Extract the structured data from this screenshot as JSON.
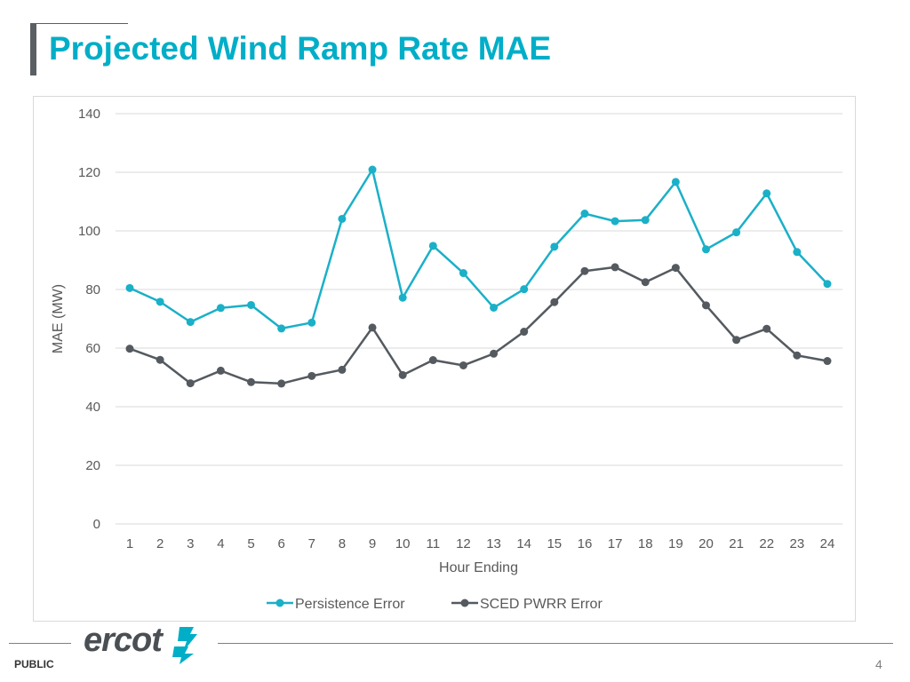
{
  "slide": {
    "title": "Projected Wind Ramp Rate MAE",
    "public_label": "PUBLIC",
    "page_number": "4",
    "logo_text": "ercot"
  },
  "colors": {
    "accent": "#00aec7",
    "series1": "#1ab0c8",
    "series2": "#545a5f",
    "grid": "#d9d9d9",
    "axis_text": "#595959"
  },
  "chart_data": {
    "type": "line",
    "title": "",
    "xlabel": "Hour Ending",
    "ylabel": "MAE (MW)",
    "ylim": [
      0,
      140
    ],
    "yticks": [
      0,
      20,
      40,
      60,
      80,
      100,
      120,
      140
    ],
    "categories": [
      "1",
      "2",
      "3",
      "4",
      "5",
      "6",
      "7",
      "8",
      "9",
      "10",
      "11",
      "12",
      "13",
      "14",
      "15",
      "16",
      "17",
      "18",
      "19",
      "20",
      "21",
      "22",
      "23",
      "24"
    ],
    "legend_position": "bottom",
    "grid": true,
    "series": [
      {
        "name": "Persistence Error",
        "values": [
          80.5,
          75.8,
          68.9,
          73.7,
          74.7,
          66.7,
          68.7,
          104.1,
          120.9,
          77.2,
          94.9,
          85.6,
          73.8,
          80.1,
          94.6,
          105.9,
          103.3,
          103.7,
          116.7,
          93.7,
          99.5,
          112.8,
          92.8,
          81.9
        ]
      },
      {
        "name": "SCED PWRR Error",
        "values": [
          59.8,
          56.0,
          48.0,
          52.3,
          48.4,
          47.9,
          50.5,
          52.6,
          67.0,
          50.8,
          55.9,
          54.1,
          58.1,
          65.6,
          75.7,
          86.3,
          87.6,
          82.5,
          87.4,
          74.6,
          62.8,
          66.6,
          57.5,
          55.6
        ]
      }
    ]
  }
}
